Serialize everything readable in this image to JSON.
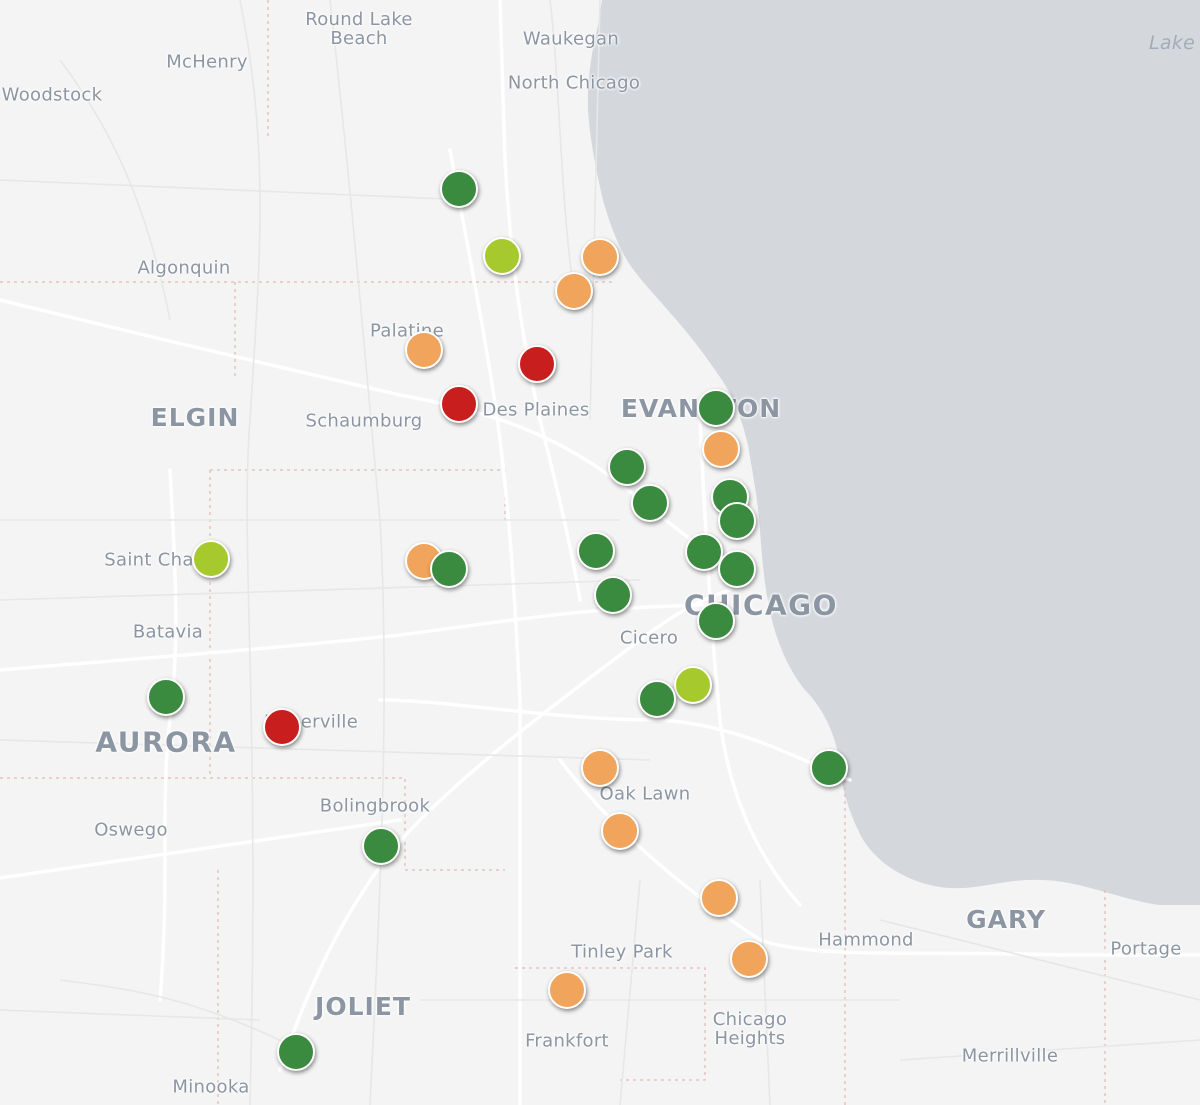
{
  "map": {
    "labels": [
      {
        "id": "round-lake-beach",
        "text": "Round Lake\nBeach",
        "size": "small"
      },
      {
        "id": "waukegan",
        "text": "Waukegan",
        "size": "small"
      },
      {
        "id": "mchenry",
        "text": "McHenry",
        "size": "small"
      },
      {
        "id": "woodstock",
        "text": "Woodstock",
        "size": "small"
      },
      {
        "id": "north-chicago",
        "text": "North Chicago",
        "size": "small"
      },
      {
        "id": "lake",
        "text": "Lake",
        "size": "lake"
      },
      {
        "id": "algonquin",
        "text": "Algonquin",
        "size": "small"
      },
      {
        "id": "palatine",
        "text": "Palatine",
        "size": "small"
      },
      {
        "id": "elgin",
        "text": "ELGIN",
        "size": "big"
      },
      {
        "id": "schaumburg",
        "text": "Schaumburg",
        "size": "small"
      },
      {
        "id": "des-plaines",
        "text": "Des Plaines",
        "size": "small"
      },
      {
        "id": "evanston",
        "text": "EVANSTON",
        "size": "big"
      },
      {
        "id": "saint-charles",
        "text": "Saint Charles",
        "size": "small"
      },
      {
        "id": "chicago",
        "text": "CHICAGO",
        "size": "huge"
      },
      {
        "id": "batavia",
        "text": "Batavia",
        "size": "small"
      },
      {
        "id": "cicero",
        "text": "Cicero",
        "size": "small"
      },
      {
        "id": "aurora",
        "text": "AURORA",
        "size": "huge"
      },
      {
        "id": "naperville",
        "text": "Naperville",
        "size": "small"
      },
      {
        "id": "oak-lawn",
        "text": "Oak Lawn",
        "size": "small"
      },
      {
        "id": "bolingbrook",
        "text": "Bolingbrook",
        "size": "small"
      },
      {
        "id": "oswego",
        "text": "Oswego",
        "size": "small"
      },
      {
        "id": "gary",
        "text": "GARY",
        "size": "big"
      },
      {
        "id": "hammond",
        "text": "Hammond",
        "size": "small"
      },
      {
        "id": "portage",
        "text": "Portage",
        "size": "small"
      },
      {
        "id": "tinley-park",
        "text": "Tinley Park",
        "size": "small"
      },
      {
        "id": "joliet",
        "text": "JOLIET",
        "size": "big"
      },
      {
        "id": "chicago-heights",
        "text": "Chicago\nHeights",
        "size": "small"
      },
      {
        "id": "frankfort",
        "text": "Frankfort",
        "size": "small"
      },
      {
        "id": "merrillville",
        "text": "Merrillville",
        "size": "small"
      },
      {
        "id": "minooka",
        "text": "Minooka",
        "size": "small"
      }
    ],
    "marker_colors": {
      "green": "#3a8a3f",
      "lime": "#a6c92e",
      "orange": "#f0a45c",
      "red": "#c81e1e"
    },
    "markers": [
      "green",
      "lime",
      "orange",
      "orange",
      "orange",
      "red",
      "red",
      "green",
      "orange",
      "green",
      "green",
      "green",
      "green",
      "lime",
      "orange",
      "green",
      "green",
      "green",
      "green",
      "green",
      "green",
      "green",
      "lime",
      "green",
      "red",
      "orange",
      "green",
      "orange",
      "green",
      "orange",
      "orange",
      "orange",
      "green"
    ]
  }
}
